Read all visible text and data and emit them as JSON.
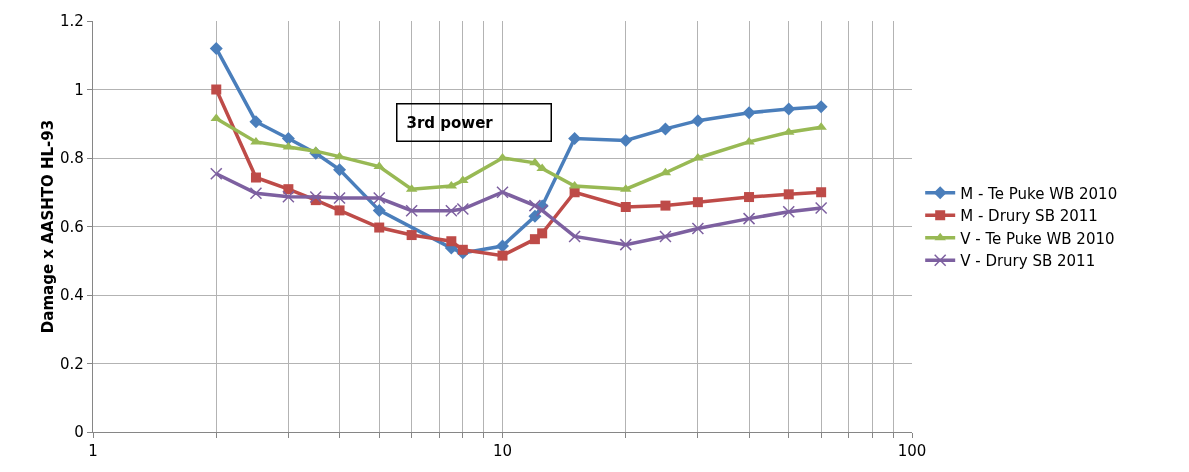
{
  "chart_data": {
    "type": "line",
    "ylabel": "Damage x AASHTO HL-93",
    "annotations": [
      "3rd power"
    ],
    "x": [
      2,
      2.5,
      3,
      3.5,
      4,
      5,
      6,
      7.5,
      8,
      10,
      12,
      12.5,
      15,
      20,
      25,
      30,
      40,
      50,
      60
    ],
    "series": [
      {
        "name": "M - Te Puke WB 2010",
        "color": "#4a7ebb",
        "marker": "diamond",
        "values": [
          1.12,
          0.906,
          0.857,
          0.814,
          0.766,
          0.647,
          null,
          0.537,
          0.523,
          0.543,
          0.63,
          0.66,
          0.857,
          0.851,
          0.885,
          0.909,
          0.932,
          0.943,
          0.95
        ]
      },
      {
        "name": "M - Drury SB 2011",
        "color": "#be4b48",
        "marker": "square",
        "values": [
          1.0,
          0.743,
          0.709,
          0.677,
          0.647,
          0.597,
          0.575,
          0.557,
          0.532,
          0.515,
          0.563,
          0.58,
          0.7,
          0.657,
          0.661,
          0.671,
          0.686,
          0.694,
          0.7
        ]
      },
      {
        "name": "V - Te Puke WB 2010",
        "color": "#98b954",
        "marker": "triangle",
        "values": [
          0.915,
          0.847,
          0.832,
          0.82,
          0.804,
          0.775,
          0.709,
          0.718,
          0.734,
          0.8,
          0.786,
          0.769,
          0.718,
          0.709,
          0.757,
          0.8,
          0.847,
          0.875,
          0.89
        ]
      },
      {
        "name": "V - Drury SB 2011",
        "color": "#7d60a0",
        "marker": "cross",
        "values": [
          0.754,
          0.697,
          0.687,
          0.686,
          0.683,
          0.683,
          0.646,
          0.646,
          0.651,
          0.7,
          0.661,
          0.647,
          0.571,
          0.547,
          0.571,
          0.594,
          0.623,
          0.643,
          0.654
        ]
      }
    ],
    "log": "x",
    "xlim": [
      1,
      100
    ],
    "xticks": [
      1,
      {
        "value": 2,
        "label": null
      },
      {
        "value": 3,
        "label": null
      },
      {
        "value": 4,
        "label": null
      },
      {
        "value": 5,
        "label": null
      },
      {
        "value": 6,
        "label": null
      },
      {
        "value": 7,
        "label": null
      },
      {
        "value": 8,
        "label": null
      },
      {
        "value": 9,
        "label": null
      },
      10,
      {
        "value": 20,
        "label": null
      },
      {
        "value": 30,
        "label": null
      },
      {
        "value": 40,
        "label": null
      },
      {
        "value": 50,
        "label": null
      },
      {
        "value": 60,
        "label": null
      },
      {
        "value": 70,
        "label": null
      },
      {
        "value": 80,
        "label": null
      },
      {
        "value": 90,
        "label": null
      },
      100
    ],
    "ylim": [
      0,
      1.2
    ],
    "yticks": [
      0,
      0.2,
      0.4,
      0.6,
      0.8,
      1,
      1.2
    ],
    "grid": true,
    "legend": "right",
    "line_style": "solid"
  }
}
